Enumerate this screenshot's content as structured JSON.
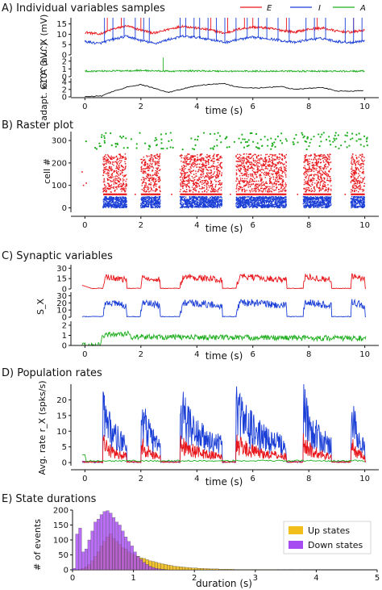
{
  "figure": {
    "panels": [
      {
        "key": "A",
        "title": "A) Individual variables samples"
      },
      {
        "key": "B",
        "title": "B) Raster plot"
      },
      {
        "key": "C",
        "title": "C) Synaptic variables"
      },
      {
        "key": "D",
        "title": "D) Population rates"
      },
      {
        "key": "E",
        "title": "E) State durations"
      }
    ]
  },
  "colors": {
    "E": "#e8161b",
    "I": "#1b3fd6",
    "A": "#1fae1f",
    "adapt": "#111111",
    "up": "#f2be1c",
    "down": "#a64bf2"
  },
  "chart_data": [
    {
      "id": "A",
      "type": "line",
      "title": "A) Individual variables samples",
      "legend": [
        "E",
        "I",
        "A"
      ],
      "legend_placement": "top-right",
      "xlabel": "time (s)",
      "xlim": [
        -0.5,
        10.5
      ],
      "xticks": [
        0,
        2,
        4,
        6,
        8,
        10
      ],
      "rows": [
        {
          "ylabel": "V^X (mV)",
          "yticks": [
            0,
            5,
            10,
            15
          ],
          "ylim": [
            0,
            18
          ],
          "series": [
            {
              "name": "E",
              "values_desc": "",
              "baseline": [
                [
                  0,
                  11
                ],
                [
                  0.5,
                  10
                ],
                [
                  1,
                  12.5
                ],
                [
                  1.5,
                  14
                ],
                [
                  2,
                  12
                ],
                [
                  2.5,
                  10.5
                ],
                [
                  3,
                  12.5
                ],
                [
                  3.5,
                  14
                ],
                [
                  4,
                  13
                ],
                [
                  4.5,
                  12
                ],
                [
                  5,
                  10.5
                ],
                [
                  5.5,
                  12.5
                ],
                [
                  6,
                  13.5
                ],
                [
                  6.5,
                  13
                ],
                [
                  7,
                  12
                ],
                [
                  7.5,
                  11
                ],
                [
                  8,
                  12.5
                ],
                [
                  8.5,
                  13
                ],
                [
                  9,
                  11.5
                ],
                [
                  9.5,
                  11
                ],
                [
                  10,
                  12
                ]
              ],
              "spikes": [
                0.8,
                1.3,
                2.0,
                4.5,
                5.1,
                5.7,
                6.0,
                7.2,
                8.3,
                9.6
              ]
            },
            {
              "name": "I",
              "baseline": [
                [
                  0,
                  6.5
                ],
                [
                  0.5,
                  5.5
                ],
                [
                  1,
                  7.5
                ],
                [
                  1.5,
                  9
                ],
                [
                  2,
                  7
                ],
                [
                  2.5,
                  5.5
                ],
                [
                  3,
                  7.5
                ],
                [
                  3.5,
                  9
                ],
                [
                  4,
                  8.5
                ],
                [
                  4.5,
                  7.5
                ],
                [
                  5,
                  6
                ],
                [
                  5.5,
                  7.5
                ],
                [
                  6,
                  8.5
                ],
                [
                  6.5,
                  8
                ],
                [
                  7,
                  7
                ],
                [
                  7.5,
                  6
                ],
                [
                  8,
                  7.5
                ],
                [
                  8.5,
                  8
                ],
                [
                  9,
                  6.5
                ],
                [
                  9.5,
                  6
                ],
                [
                  10,
                  7
                ]
              ],
              "spikes": [
                0.7,
                1.0,
                1.4,
                1.8,
                2.1,
                2.3,
                3.4,
                3.6,
                3.9,
                4.1,
                4.4,
                4.7,
                5.0,
                5.4,
                5.8,
                6.2,
                6.5,
                6.9,
                7.3,
                7.9,
                8.2,
                8.6,
                9.3,
                9.6,
                9.9
              ]
            }
          ]
        },
        {
          "ylabel": "G^A (a.u.)",
          "yticks": [
            0,
            1,
            2
          ],
          "ylim": [
            0,
            2.6
          ],
          "series": [
            {
              "name": "A",
              "baseline": [
                [
                  0,
                  0.7
                ],
                [
                  1,
                  0.75
                ],
                [
                  2,
                  0.8
                ],
                [
                  3,
                  0.7
                ],
                [
                  4,
                  0.75
                ],
                [
                  5,
                  0.7
                ],
                [
                  6,
                  0.7
                ],
                [
                  7,
                  0.72
                ],
                [
                  8,
                  0.7
                ],
                [
                  9,
                  0.7
                ],
                [
                  10,
                  0.7
                ]
              ],
              "spikes": [
                2.8
              ]
            }
          ]
        },
        {
          "ylabel": "adapt. x10^3",
          "yticks": [
            0,
            2,
            4
          ],
          "ylim": [
            0,
            5
          ],
          "series": [
            {
              "name": "adapt",
              "values": [
                [
                  0,
                  0.1
                ],
                [
                  0.6,
                  0.2
                ],
                [
                  1,
                  1.5
                ],
                [
                  1.5,
                  2.6
                ],
                [
                  2,
                  3.3
                ],
                [
                  2.4,
                  2.5
                ],
                [
                  3,
                  1.2
                ],
                [
                  3.5,
                  2.2
                ],
                [
                  4,
                  3
                ],
                [
                  4.5,
                  3.4
                ],
                [
                  5,
                  3.5
                ],
                [
                  5.5,
                  2.5
                ],
                [
                  6,
                  2.4
                ],
                [
                  6.5,
                  2.5
                ],
                [
                  7,
                  2.8
                ],
                [
                  7.5,
                  2
                ],
                [
                  8,
                  2.3
                ],
                [
                  8.5,
                  2.5
                ],
                [
                  9,
                  1.6
                ],
                [
                  9.5,
                  1.5
                ],
                [
                  10,
                  1.8
                ]
              ]
            }
          ]
        }
      ]
    },
    {
      "id": "B",
      "type": "scatter",
      "title": "B) Raster plot",
      "xlabel": "time (s)",
      "ylabel": "cell #",
      "xlim": [
        -0.5,
        10.5
      ],
      "ylim": [
        -20,
        340
      ],
      "xticks": [
        0,
        2,
        4,
        6,
        8,
        10
      ],
      "yticks": [
        0,
        100,
        200,
        300
      ],
      "up_states": [
        [
          0.65,
          1.5
        ],
        [
          2.0,
          2.7
        ],
        [
          3.4,
          4.9
        ],
        [
          5.4,
          7.2
        ],
        [
          7.8,
          8.8
        ],
        [
          9.5,
          10.0
        ]
      ],
      "groups": [
        {
          "name": "I",
          "range": [
            0,
            50
          ],
          "color_key": "I"
        },
        {
          "name": "E",
          "range": [
            55,
            250
          ],
          "color_key": "E"
        },
        {
          "name": "A",
          "range": [
            250,
            340
          ],
          "color_key": "A"
        }
      ]
    },
    {
      "id": "C",
      "type": "line",
      "title": "C) Synaptic variables",
      "xlabel": "time (s)",
      "ylabel": "S_X",
      "xlim": [
        -0.5,
        10.5
      ],
      "xticks": [
        0,
        2,
        4,
        6,
        8,
        10
      ],
      "rows": [
        {
          "series_name": "E",
          "yticks": [
            0,
            15,
            30
          ],
          "ylim": [
            0,
            35
          ]
        },
        {
          "series_name": "I",
          "yticks": [
            0,
            10,
            20,
            30
          ],
          "ylim": [
            0,
            35
          ]
        },
        {
          "series_name": "A",
          "yticks": [
            0,
            1,
            2
          ],
          "ylim": [
            0,
            2.4
          ]
        }
      ],
      "up_states": [
        [
          0.65,
          1.5
        ],
        [
          2.0,
          2.7
        ],
        [
          3.4,
          4.9
        ],
        [
          5.4,
          7.2
        ],
        [
          7.8,
          8.8
        ],
        [
          9.5,
          10.0
        ]
      ]
    },
    {
      "id": "D",
      "type": "line",
      "title": "D) Population rates",
      "xlabel": "time (s)",
      "ylabel": "Avg. rate r_X (spks/s)",
      "xlim": [
        -0.5,
        10.5
      ],
      "ylim": [
        -1,
        25
      ],
      "xticks": [
        0,
        2,
        4,
        6,
        8,
        10
      ],
      "yticks": [
        0,
        5,
        10,
        15,
        20
      ],
      "up_states": [
        [
          0.65,
          1.5
        ],
        [
          2.0,
          2.7
        ],
        [
          3.4,
          4.9
        ],
        [
          5.4,
          7.2
        ],
        [
          7.8,
          8.8
        ],
        [
          9.5,
          10.0
        ]
      ],
      "peaks": {
        "I": [
          23,
          18,
          17,
          22,
          18,
          14,
          19,
          16,
          19,
          16,
          14,
          12
        ],
        "E": [
          10,
          8,
          8,
          9,
          8,
          6,
          8,
          7,
          8,
          7,
          6,
          6
        ]
      }
    },
    {
      "id": "E",
      "type": "bar",
      "title": "E) State durations",
      "xlabel": "duration (s)",
      "ylabel": "# of events",
      "xlim": [
        0,
        5
      ],
      "ylim": [
        0,
        200
      ],
      "xticks": [
        0,
        1,
        2,
        3,
        4,
        5
      ],
      "yticks": [
        0,
        50,
        100,
        150,
        200
      ],
      "legend_placement": "right",
      "bin_width": 0.05,
      "series": [
        {
          "name": "Up states",
          "values": [
            0,
            0,
            2,
            5,
            10,
            18,
            30,
            45,
            60,
            80,
            95,
            110,
            120,
            105,
            95,
            85,
            75,
            70,
            60,
            55,
            50,
            45,
            40,
            38,
            34,
            30,
            28,
            25,
            22,
            20,
            18,
            16,
            14,
            12,
            11,
            10,
            9,
            8,
            7,
            6,
            6,
            5,
            5,
            4,
            4,
            3,
            3,
            3,
            2,
            2,
            2,
            2,
            2,
            1,
            1,
            1,
            1,
            1,
            1,
            1,
            1,
            1,
            1,
            1,
            1,
            1,
            1,
            0,
            1,
            0,
            1,
            0,
            0,
            1,
            0,
            0,
            0,
            0,
            0,
            0,
            0,
            0,
            0,
            0,
            0,
            0,
            0,
            0,
            0,
            0,
            0,
            0,
            0,
            0,
            0,
            0,
            0,
            0,
            0,
            0
          ]
        },
        {
          "name": "Down states",
          "values": [
            5,
            120,
            140,
            60,
            70,
            100,
            130,
            160,
            170,
            185,
            195,
            198,
            190,
            175,
            160,
            150,
            130,
            110,
            95,
            80,
            60,
            45,
            35,
            25,
            18,
            12,
            8,
            5,
            3,
            2,
            1,
            0,
            0,
            0,
            0,
            0,
            0,
            0,
            0,
            0,
            0,
            0,
            0,
            0,
            0,
            0,
            0,
            0,
            0,
            0,
            0,
            0,
            0,
            0,
            0,
            0,
            0,
            0,
            0,
            0,
            0,
            0,
            0,
            0,
            0,
            0,
            0,
            0,
            0,
            0,
            0,
            0,
            0,
            0,
            0,
            0,
            0,
            0,
            0,
            0,
            0,
            0,
            0,
            0,
            0,
            0,
            0,
            0,
            0,
            0,
            0,
            0,
            0,
            0,
            0,
            0,
            0,
            0,
            0,
            0
          ]
        }
      ]
    }
  ]
}
